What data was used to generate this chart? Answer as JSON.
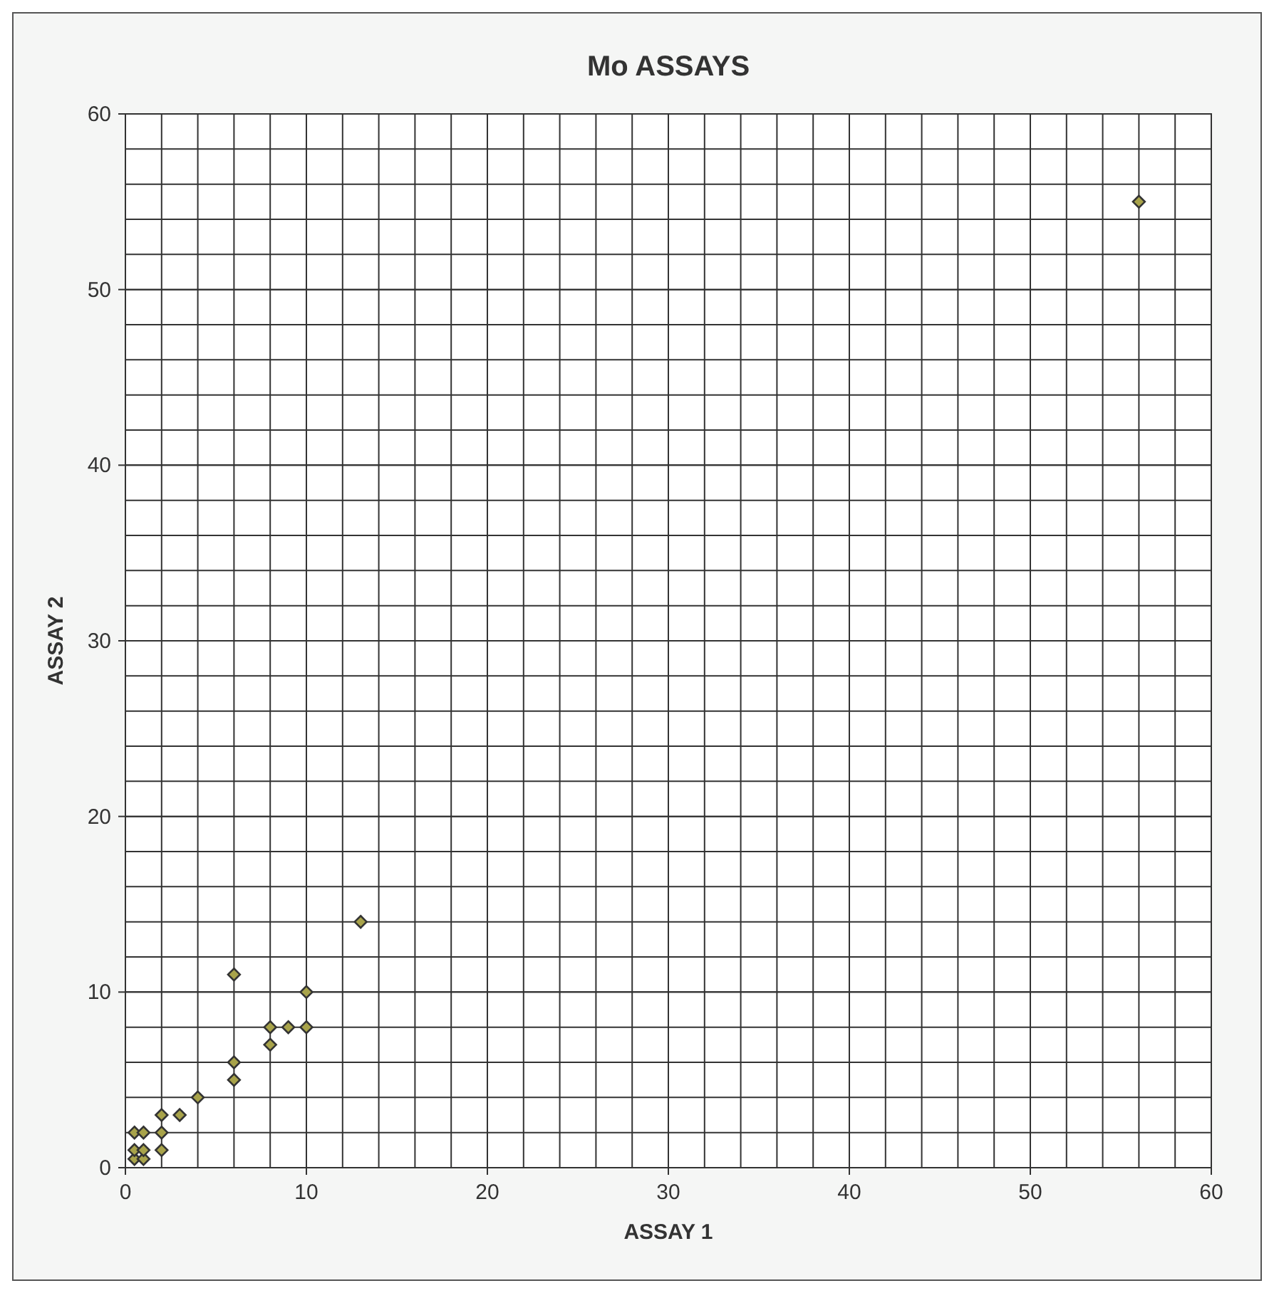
{
  "chart_data": {
    "type": "scatter",
    "title": "Mo ASSAYS",
    "xlabel": "ASSAY 1",
    "ylabel": "ASSAY 2",
    "x": [
      0.5,
      1,
      0.5,
      1,
      2,
      0.5,
      1,
      2,
      2,
      3,
      4,
      6,
      6,
      6,
      8,
      8,
      9,
      10,
      10,
      13,
      56
    ],
    "values": [
      0.5,
      0.5,
      1,
      1,
      1,
      2,
      2,
      2,
      3,
      3,
      4,
      5,
      6,
      11,
      7,
      8,
      8,
      8,
      10,
      14,
      55
    ],
    "color": "#a8a34a",
    "marker": "diamond",
    "grid": true,
    "xlim": [
      0,
      60
    ],
    "ylim": [
      0,
      60
    ],
    "xticks": [
      0,
      10,
      20,
      30,
      40,
      50,
      60
    ],
    "yticks": [
      0,
      10,
      20,
      30,
      40,
      50,
      60
    ]
  }
}
